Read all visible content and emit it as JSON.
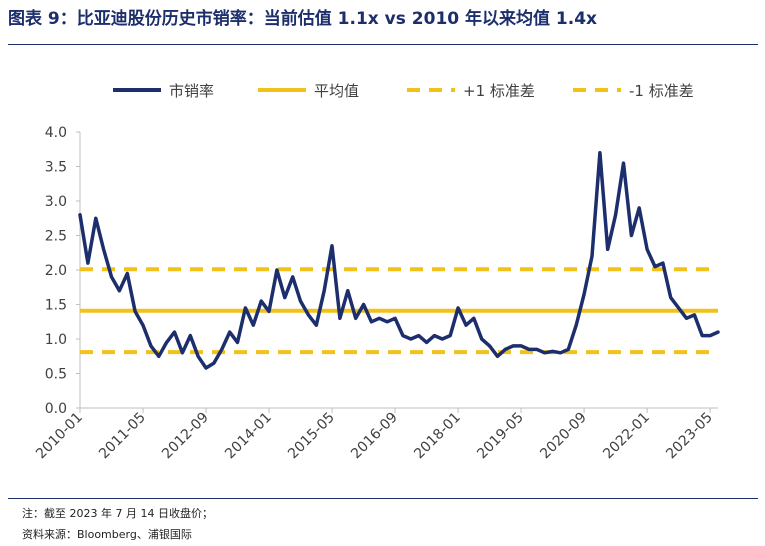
{
  "header": {
    "figure_label": "图表 9：",
    "title": "比亚迪股份历史市销率：当前估值 1.1x vs 2010 年以来均值 1.4x"
  },
  "footer": {
    "note": "注：截至 2023 年 7 月 14 日收盘价；",
    "source": "资料来源：Bloomberg、浦银国际"
  },
  "colors": {
    "navy": "#1c2e6b",
    "gold": "#f2c11a",
    "axis": "#bfbfbf",
    "text": "#404040"
  },
  "chart_data": {
    "type": "line",
    "title": "",
    "xlabel": "",
    "ylabel": "",
    "ylim": [
      0,
      4.0
    ],
    "yticks": [
      "0.0",
      "0.5",
      "1.0",
      "1.5",
      "2.0",
      "2.5",
      "3.0",
      "3.5",
      "4.0"
    ],
    "xticks": [
      "2010-01",
      "2011-05",
      "2012-09",
      "2014-01",
      "2015-05",
      "2016-09",
      "2018-01",
      "2019-05",
      "2020-09",
      "2022-01",
      "2023-05"
    ],
    "x_range": [
      "2010-01",
      "2023-07"
    ],
    "legend_position": "top",
    "grid": false,
    "series": [
      {
        "name": "市销率",
        "style": "solid-thick",
        "color": "#1c2e6b",
        "x": [
          "2010-01",
          "2010-03",
          "2010-05",
          "2010-07",
          "2010-09",
          "2010-11",
          "2011-01",
          "2011-03",
          "2011-05",
          "2011-07",
          "2011-09",
          "2011-11",
          "2012-01",
          "2012-03",
          "2012-05",
          "2012-07",
          "2012-09",
          "2012-11",
          "2013-01",
          "2013-03",
          "2013-05",
          "2013-07",
          "2013-09",
          "2013-11",
          "2014-01",
          "2014-03",
          "2014-05",
          "2014-07",
          "2014-09",
          "2014-11",
          "2015-01",
          "2015-03",
          "2015-05",
          "2015-07",
          "2015-09",
          "2015-11",
          "2016-01",
          "2016-03",
          "2016-05",
          "2016-07",
          "2016-09",
          "2016-11",
          "2017-01",
          "2017-03",
          "2017-05",
          "2017-07",
          "2017-09",
          "2017-11",
          "2018-01",
          "2018-03",
          "2018-05",
          "2018-07",
          "2018-09",
          "2018-11",
          "2019-01",
          "2019-03",
          "2019-05",
          "2019-07",
          "2019-09",
          "2019-11",
          "2020-01",
          "2020-03",
          "2020-05",
          "2020-07",
          "2020-09",
          "2020-11",
          "2021-01",
          "2021-03",
          "2021-05",
          "2021-07",
          "2021-09",
          "2021-11",
          "2022-01",
          "2022-03",
          "2022-05",
          "2022-07",
          "2022-09",
          "2022-11",
          "2023-01",
          "2023-03",
          "2023-05",
          "2023-07"
        ],
        "values": [
          2.8,
          2.1,
          2.75,
          2.3,
          1.9,
          1.7,
          1.95,
          1.4,
          1.2,
          0.9,
          0.75,
          0.95,
          1.1,
          0.8,
          1.05,
          0.75,
          0.58,
          0.65,
          0.85,
          1.1,
          0.95,
          1.45,
          1.2,
          1.55,
          1.4,
          2.0,
          1.6,
          1.9,
          1.55,
          1.35,
          1.2,
          1.7,
          2.35,
          1.3,
          1.7,
          1.3,
          1.5,
          1.25,
          1.3,
          1.25,
          1.3,
          1.05,
          1.0,
          1.05,
          0.95,
          1.05,
          1.0,
          1.05,
          1.45,
          1.2,
          1.3,
          1.0,
          0.9,
          0.75,
          0.85,
          0.9,
          0.9,
          0.85,
          0.85,
          0.8,
          0.82,
          0.8,
          0.85,
          1.2,
          1.65,
          2.2,
          3.7,
          2.3,
          2.8,
          3.55,
          2.5,
          2.9,
          2.3,
          2.05,
          2.1,
          1.6,
          1.45,
          1.3,
          1.35,
          1.05,
          1.05,
          1.1
        ]
      },
      {
        "name": "平均值",
        "style": "solid",
        "color": "#f2c11a",
        "value": 1.41
      },
      {
        "name": "+1 标准差",
        "style": "dashed",
        "color": "#f2c11a",
        "value": 2.01
      },
      {
        "name": "-1 标准差",
        "style": "dashed",
        "color": "#f2c11a",
        "value": 0.81
      }
    ]
  }
}
